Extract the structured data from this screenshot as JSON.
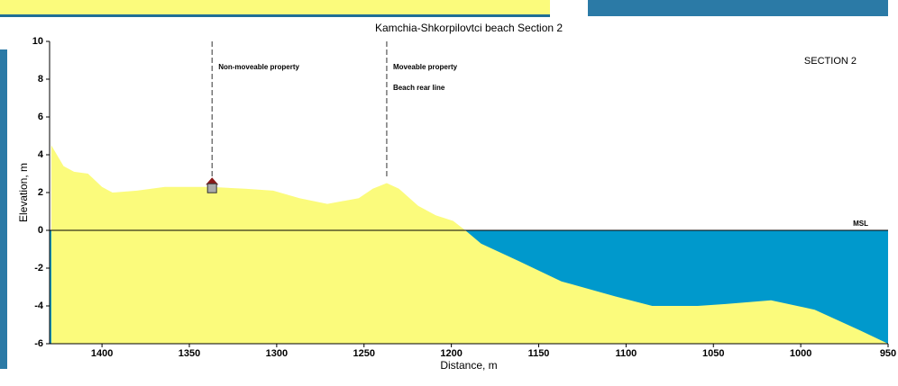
{
  "chart_data": {
    "type": "profile",
    "title": "Kamchia-Shkorpilovtci beach Section 2",
    "x_label": "Distance, m",
    "y_label": "Elevation, m",
    "section_label": "SECTION 2",
    "sea_level_label": "MSL",
    "x": [
      1429,
      1422,
      1416,
      1408,
      1400,
      1394,
      1380,
      1364,
      1338,
      1318,
      1302,
      1287,
      1271,
      1253,
      1245,
      1237,
      1230,
      1219,
      1209,
      1199,
      1192,
      1183,
      1162,
      1137,
      1106,
      1085,
      1059,
      1043,
      1017,
      992,
      966,
      950
    ],
    "values": [
      4.5,
      3.4,
      3.1,
      3.0,
      2.3,
      2.0,
      2.1,
      2.3,
      2.3,
      2.2,
      2.1,
      1.7,
      1.4,
      1.7,
      2.2,
      2.5,
      2.2,
      1.3,
      0.8,
      0.5,
      0,
      -0.7,
      -1.6,
      -2.7,
      -3.5,
      -4.0,
      -4.0,
      -3.9,
      -3.7,
      -4.2,
      -5.3,
      -6
    ],
    "markers": [
      {
        "x": 1337,
        "top": 10,
        "bottom": 2.8,
        "labels": [
          "Non-moveable property"
        ]
      },
      {
        "x": 1237,
        "top": 10,
        "bottom": 2.8,
        "labels": [
          "Moveable property",
          "Beach rear line"
        ]
      }
    ],
    "sand_color": "#fbfb7c",
    "water_color": "#0099cc",
    "xlim": [
      1430,
      950
    ],
    "xticks": [
      1400,
      1350,
      1300,
      1250,
      1200,
      1150,
      1100,
      1050,
      1000,
      950
    ],
    "ylim": [
      -6,
      10
    ],
    "yticks": [
      -6,
      -4,
      -2,
      0,
      2,
      4,
      6,
      8,
      10
    ]
  }
}
